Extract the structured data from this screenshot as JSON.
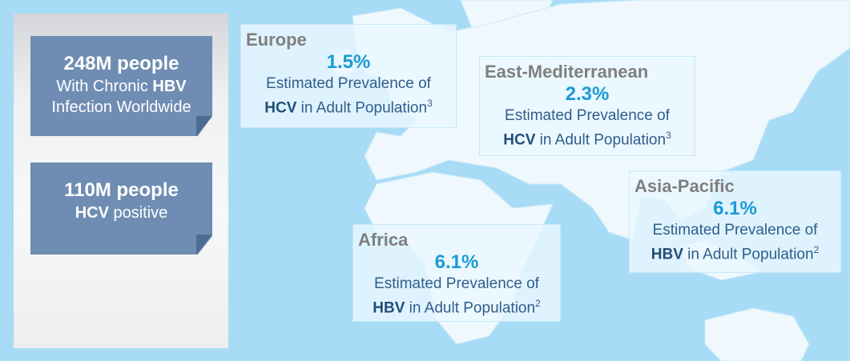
{
  "stat_boxes": [
    {
      "headline": "248M people",
      "line1_text": "With Chronic",
      "line1_bold": "HBV",
      "line2": "Infection Worldwide"
    },
    {
      "headline": "110M people",
      "line1_bold": "HCV",
      "line1_text": "positive"
    }
  ],
  "regions": [
    {
      "name": "Europe",
      "prevalence": "1.5%",
      "description": "Estimated Prevalence of",
      "disease": "HCV",
      "population": "in Adult Population",
      "footnote": "3"
    },
    {
      "name": "East-Mediterranean",
      "prevalence": "2.3%",
      "description": "Estimated Prevalence of",
      "disease": "HCV",
      "population": "in Adult Population",
      "footnote": "3"
    },
    {
      "name": "Asia-Pacific",
      "prevalence": "6.1%",
      "description": "Estimated Prevalence of",
      "disease": "HBV",
      "population": "in Adult Population",
      "footnote": "2"
    },
    {
      "name": "Africa",
      "prevalence": "6.1%",
      "description": "Estimated Prevalence of",
      "disease": "HBV",
      "population": "in Adult Population",
      "footnote": "2"
    }
  ]
}
